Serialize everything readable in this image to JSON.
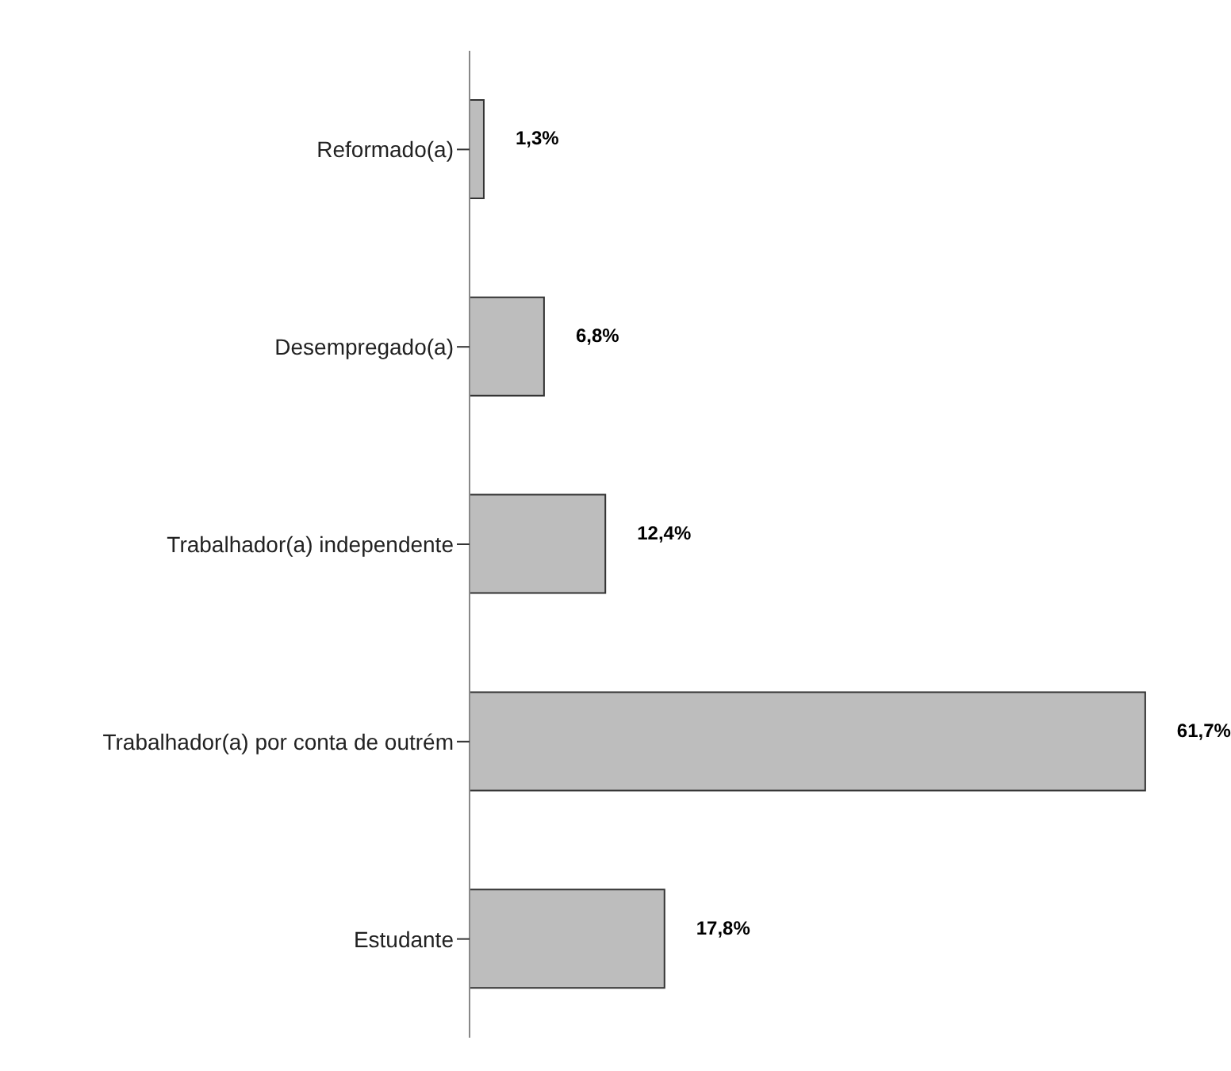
{
  "chart_data": {
    "type": "bar",
    "orientation": "horizontal",
    "categories": [
      "Reformado(a)",
      "Desempregado(a)",
      "Trabalhador(a) independente",
      "Trabalhador(a) por conta de outrém",
      "Estudante"
    ],
    "values": [
      1.3,
      6.8,
      12.4,
      61.7,
      17.8
    ],
    "value_labels": [
      "1,3%",
      "6,8%",
      "12,4%",
      "61,7%",
      "17,8%"
    ],
    "color": "#bdbdbd",
    "xlim": [
      0,
      62
    ],
    "tick_labels": "y",
    "grid": false,
    "legend": false
  }
}
